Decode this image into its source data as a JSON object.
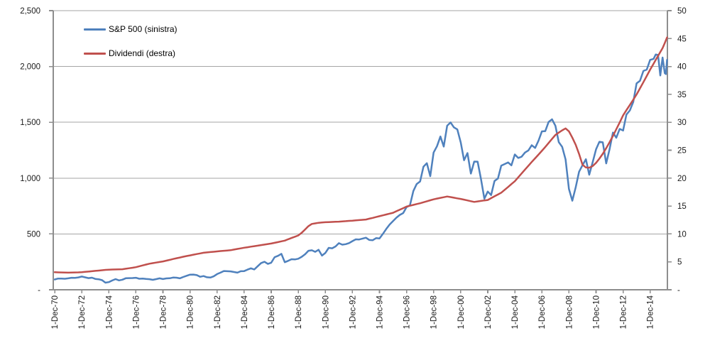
{
  "chart_data": {
    "type": "line",
    "title": "",
    "legend_position": "top-left-inside",
    "grid": true,
    "colors": {
      "sp500_line": "#4F81BD",
      "dividends_line": "#C0504D",
      "gridline": "#A6A6A6",
      "axis": "#8E8E8E",
      "text": "#1a1a1a",
      "background": "#FFFFFF"
    },
    "x_unit_months_since_dec_1970": true,
    "x_months": [
      0,
      3,
      6,
      9,
      12,
      15,
      18,
      21,
      24,
      27,
      30,
      33,
      36,
      39,
      42,
      45,
      48,
      51,
      54,
      57,
      60,
      63,
      66,
      69,
      72,
      75,
      78,
      81,
      84,
      87,
      90,
      93,
      96,
      99,
      102,
      105,
      108,
      111,
      114,
      117,
      120,
      123,
      126,
      129,
      132,
      135,
      138,
      141,
      144,
      147,
      150,
      153,
      156,
      159,
      162,
      165,
      168,
      171,
      174,
      177,
      180,
      183,
      186,
      189,
      192,
      195,
      198,
      201,
      204,
      207,
      210,
      213,
      216,
      219,
      222,
      225,
      228,
      231,
      234,
      237,
      240,
      243,
      246,
      249,
      252,
      255,
      258,
      261,
      264,
      267,
      270,
      273,
      276,
      279,
      282,
      285,
      288,
      291,
      294,
      297,
      300,
      303,
      306,
      309,
      312,
      315,
      318,
      321,
      324,
      327,
      330,
      333,
      336,
      339,
      342,
      345,
      348,
      351,
      354,
      357,
      360,
      363,
      366,
      369,
      372,
      375,
      378,
      381,
      384,
      387,
      390,
      393,
      396,
      399,
      402,
      405,
      408,
      411,
      414,
      417,
      420,
      423,
      426,
      429,
      432,
      435,
      438,
      441,
      444,
      447,
      450,
      453,
      456,
      459,
      462,
      465,
      468,
      471,
      474,
      477,
      480,
      483,
      486,
      489,
      492,
      495,
      498,
      501,
      504,
      507,
      510,
      513,
      516,
      519,
      522,
      525,
      528,
      531,
      533,
      535,
      537,
      539,
      541,
      542,
      543
    ],
    "series": [
      {
        "name": "S&P 500 (sinistra)",
        "axis": "left",
        "color": "#4F81BD",
        "values": [
          92.2,
          100.3,
          99.7,
          98.3,
          102.1,
          107.2,
          107.1,
          110.6,
          118.1,
          111.5,
          104.3,
          108.4,
          97.6,
          94.0,
          86.0,
          63.5,
          68.6,
          83.4,
          95.2,
          83.9,
          90.2,
          102.8,
          104.3,
          105.2,
          107.5,
          98.4,
          100.5,
          96.5,
          95.1,
          89.2,
          95.5,
          102.5,
          96.1,
          101.6,
          102.9,
          109.3,
          107.9,
          102.1,
          114.2,
          125.5,
          135.8,
          136.0,
          131.2,
          116.2,
          122.6,
          112.0,
          109.6,
          120.4,
          140.6,
          153.0,
          168.1,
          166.1,
          164.9,
          159.2,
          153.2,
          166.1,
          167.2,
          180.7,
          191.9,
          182.1,
          211.3,
          238.9,
          250.8,
          231.3,
          242.2,
          291.7,
          304.0,
          321.8,
          247.1,
          258.9,
          273.5,
          271.9,
          277.7,
          294.9,
          318.0,
          349.2,
          353.4,
          339.9,
          358.0,
          306.1,
          330.2,
          375.2,
          371.2,
          387.9,
          417.1,
          403.7,
          408.1,
          417.8,
          435.7,
          451.7,
          450.5,
          458.9,
          466.5,
          445.8,
          444.3,
          462.7,
          459.3,
          500.7,
          544.8,
          584.4,
          615.9,
          645.5,
          670.6,
          687.3,
          740.7,
          757.1,
          885.1,
          947.3,
          970.4,
          1101.8,
          1133.8,
          1017.0,
          1229.2,
          1286.4,
          1372.7,
          1282.7,
          1469.3,
          1498.6,
          1454.6,
          1436.5,
          1320.3,
          1160.3,
          1224.4,
          1040.9,
          1148.1,
          1147.4,
          989.8,
          815.3,
          879.8,
          848.2,
          974.5,
          996.0,
          1111.9,
          1126.2,
          1140.8,
          1114.6,
          1211.9,
          1180.6,
          1191.3,
          1228.8,
          1248.3,
          1294.8,
          1270.2,
          1335.9,
          1418.3,
          1420.9,
          1503.4,
          1526.8,
          1468.4,
          1322.7,
          1280.0,
          1166.4,
          903.3,
          797.9,
          919.3,
          1057.1,
          1115.1,
          1169.4,
          1030.7,
          1141.2,
          1257.6,
          1325.8,
          1320.6,
          1131.4,
          1257.6,
          1408.5,
          1362.2,
          1440.7,
          1426.2,
          1569.2,
          1606.3,
          1681.6,
          1848.4,
          1872.3,
          1960.2,
          1972.3,
          2058.9,
          2067.9,
          2107.4,
          2103.8,
          1920.0,
          2080.4,
          1940.2,
          1932.2,
          2059.7
        ]
      },
      {
        "name": "Dividendi (destra)",
        "axis": "right",
        "color": "#C0504D",
        "values": [
          3.14,
          3.12,
          3.1,
          3.08,
          3.07,
          3.08,
          3.1,
          3.12,
          3.15,
          3.2,
          3.26,
          3.32,
          3.38,
          3.44,
          3.5,
          3.56,
          3.6,
          3.62,
          3.64,
          3.66,
          3.68,
          3.77,
          3.86,
          3.95,
          4.05,
          4.21,
          4.36,
          4.52,
          4.67,
          4.77,
          4.87,
          4.97,
          5.07,
          5.22,
          5.36,
          5.51,
          5.65,
          5.78,
          5.91,
          6.04,
          6.16,
          6.28,
          6.4,
          6.52,
          6.63,
          6.69,
          6.75,
          6.81,
          6.87,
          6.93,
          6.98,
          7.04,
          7.09,
          7.2,
          7.31,
          7.42,
          7.53,
          7.62,
          7.72,
          7.81,
          7.9,
          8.0,
          8.09,
          8.19,
          8.28,
          8.41,
          8.54,
          8.68,
          8.81,
          9.04,
          9.27,
          9.5,
          9.73,
          10.2,
          10.8,
          11.4,
          11.8,
          11.9,
          12.0,
          12.05,
          12.1,
          12.13,
          12.15,
          12.18,
          12.2,
          12.25,
          12.29,
          12.34,
          12.38,
          12.43,
          12.48,
          12.53,
          12.58,
          12.73,
          12.88,
          13.03,
          13.18,
          13.33,
          13.48,
          13.64,
          13.79,
          14.07,
          14.35,
          14.62,
          14.9,
          15.05,
          15.2,
          15.35,
          15.5,
          15.68,
          15.85,
          16.03,
          16.2,
          16.33,
          16.46,
          16.58,
          16.71,
          16.6,
          16.49,
          16.38,
          16.27,
          16.14,
          16.01,
          15.87,
          15.74,
          15.83,
          15.91,
          16.0,
          16.08,
          16.41,
          16.74,
          17.06,
          17.39,
          17.9,
          18.41,
          18.93,
          19.44,
          20.14,
          20.83,
          21.53,
          22.22,
          22.89,
          23.55,
          24.22,
          24.88,
          25.59,
          26.3,
          27.02,
          27.73,
          28.15,
          28.56,
          28.9,
          28.39,
          27.25,
          25.96,
          24.33,
          22.41,
          21.91,
          21.87,
          22.15,
          22.73,
          23.48,
          24.36,
          25.35,
          26.43,
          27.56,
          28.75,
          29.97,
          31.25,
          32.17,
          33.1,
          34.04,
          34.99,
          36.08,
          37.19,
          38.3,
          39.44,
          40.49,
          41.2,
          41.9,
          42.6,
          43.3,
          44.2,
          44.7,
          45.2
        ]
      }
    ],
    "left_axis": {
      "min": 0,
      "max": 2500,
      "tick_step": 500,
      "labels": [
        "-",
        "500",
        "1,000",
        "1,500",
        "2,000",
        "2,500"
      ]
    },
    "right_axis": {
      "min": 0,
      "max": 50,
      "tick_step": 5,
      "labels": [
        "-",
        "5",
        "10",
        "15",
        "20",
        "25",
        "30",
        "35",
        "40",
        "45",
        "50"
      ]
    },
    "x_axis": {
      "tick_labels": [
        "1-Dec-70",
        "1-Dec-72",
        "1-Dec-74",
        "1-Dec-76",
        "1-Dec-78",
        "1-Dec-80",
        "1-Dec-82",
        "1-Dec-84",
        "1-Dec-86",
        "1-Dec-88",
        "1-Dec-90",
        "1-Dec-92",
        "1-Dec-94",
        "1-Dec-96",
        "1-Dec-98",
        "1-Dec-00",
        "1-Dec-02",
        "1-Dec-04",
        "1-Dec-06",
        "1-Dec-08",
        "1-Dec-10",
        "1-Dec-12",
        "1-Dec-14"
      ],
      "tick_months": [
        0,
        24,
        48,
        72,
        96,
        120,
        144,
        168,
        192,
        216,
        240,
        264,
        288,
        312,
        336,
        360,
        384,
        408,
        432,
        456,
        480,
        504,
        528
      ]
    }
  }
}
